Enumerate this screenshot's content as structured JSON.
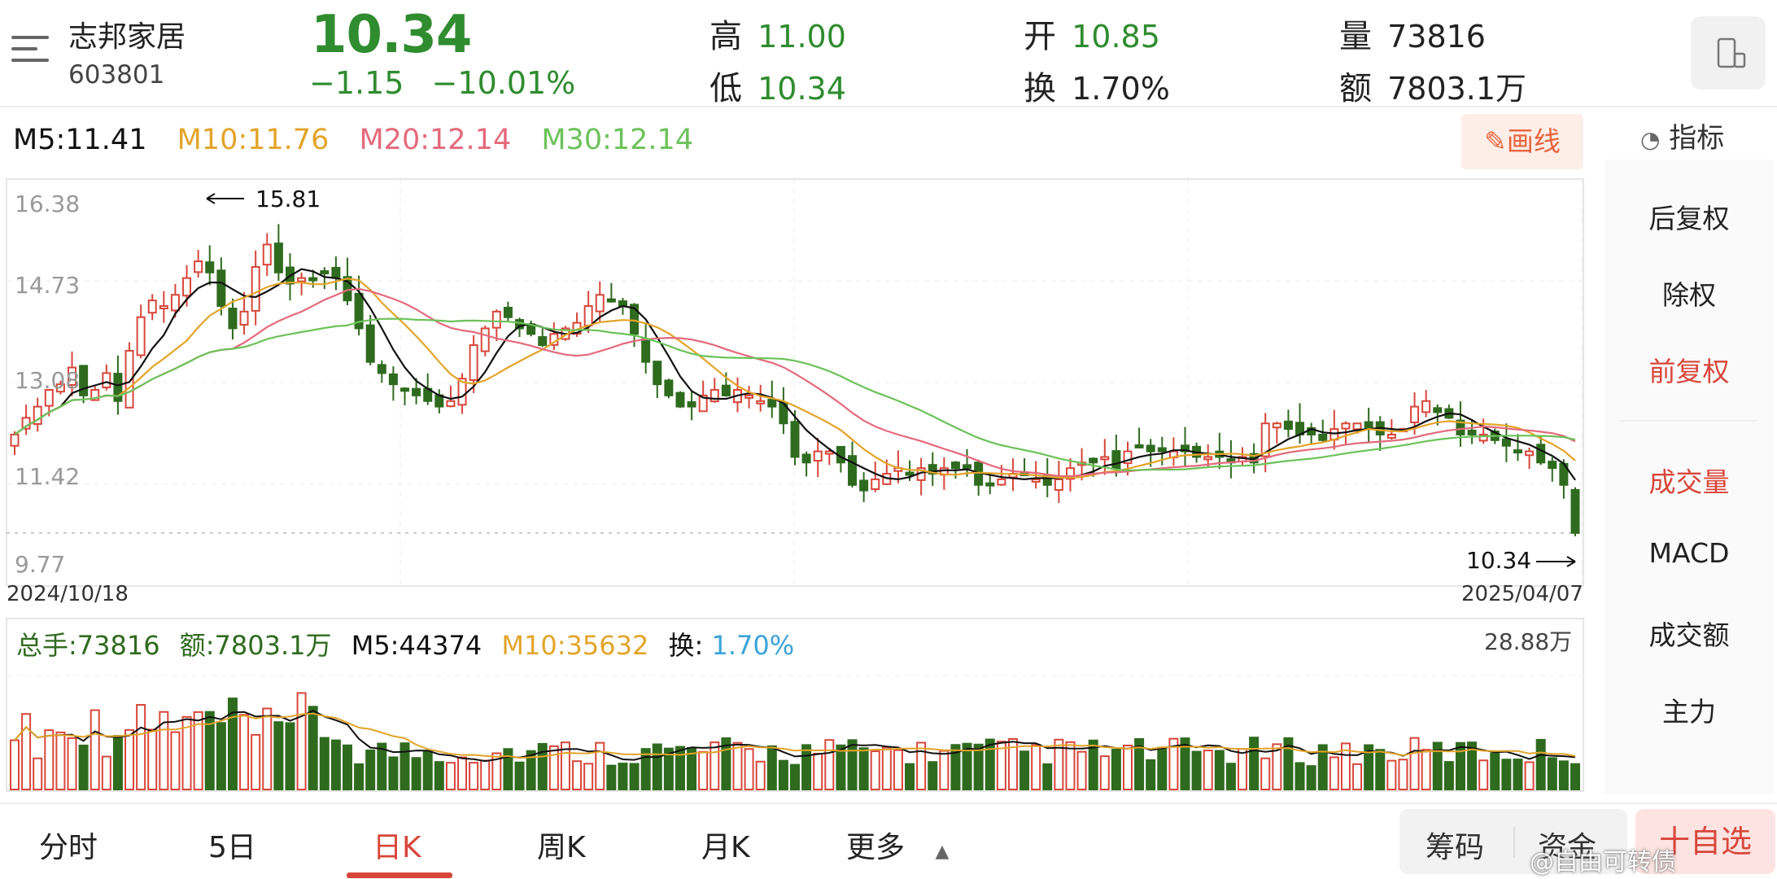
{
  "stock": {
    "name": "志邦家居",
    "code": "603801",
    "price": "10.34",
    "change": "−1.15",
    "change_pct": "−10.01%"
  },
  "stats": {
    "high_label": "高",
    "high": "11.00",
    "low_label": "低",
    "low": "10.34",
    "open_label": "开",
    "open": "10.85",
    "turnover_label": "换",
    "turnover": "1.70%",
    "volume_label": "量",
    "volume": "73816",
    "amount_label": "额",
    "amount": "7803.1万"
  },
  "ma": {
    "m5": "M5:11.41",
    "m10": "M10:11.76",
    "m20": "M20:12.14",
    "m30": "M30:12.14"
  },
  "draw_button": "画线",
  "indicator_label": "指标",
  "side_items": [
    "后复权",
    "除权",
    "前复权",
    "成交量",
    "MACD",
    "成交额",
    "主力"
  ],
  "price_axis": [
    "16.38",
    "14.73",
    "13.08",
    "11.42",
    "9.77"
  ],
  "date_start": "2024/10/18",
  "date_end": "2025/04/07",
  "high_marker": "15.81",
  "low_marker": "10.34",
  "volume_header": {
    "total": "总手:73816",
    "amount": "额:7803.1万",
    "m5": "M5:44374",
    "m10": "M10:35632",
    "turnover_label": "换:",
    "turnover": "1.70%",
    "max": "28.88万"
  },
  "tabs": [
    "分时",
    "5日",
    "日K",
    "周K",
    "月K",
    "更多"
  ],
  "buttons": {
    "chips": "筹码",
    "funds": "资金",
    "add": "十自选"
  },
  "watermark": "@自由可转债",
  "colors": {
    "up": "#d8463a",
    "down": "#2f6b1f",
    "ma5": "#111111",
    "ma10": "#e3a42a",
    "ma20": "#e46a7c",
    "ma30": "#6cc25a"
  },
  "chart_data": {
    "type": "candlestick",
    "y_range": [
      9.77,
      16.38
    ],
    "closes": [
      12.1,
      12.4,
      12.6,
      12.9,
      13.0,
      13.3,
      12.8,
      12.9,
      13.2,
      12.7,
      13.6,
      14.2,
      14.5,
      14.4,
      14.6,
      14.9,
      15.2,
      15.0,
      14.4,
      14.0,
      14.3,
      15.1,
      15.5,
      15.0,
      14.8,
      14.9,
      14.9,
      15.0,
      14.9,
      14.5,
      14.0,
      13.4,
      13.2,
      13.0,
      12.9,
      12.8,
      12.7,
      12.6,
      12.7,
      13.1,
      13.7,
      14.0,
      14.3,
      14.2,
      14.0,
      13.9,
      13.7,
      13.9,
      14.0,
      14.1,
      14.4,
      14.6,
      14.5,
      14.4,
      13.9,
      13.4,
      13.0,
      12.8,
      12.6,
      12.6,
      12.8,
      12.9,
      12.8,
      12.9,
      12.8,
      12.7,
      12.6,
      12.3,
      11.7,
      11.6,
      11.8,
      11.8,
      11.6,
      11.2,
      11.1,
      11.3,
      11.4,
      11.5,
      11.4,
      11.5,
      11.4,
      11.5,
      11.5,
      11.5,
      11.2,
      11.2,
      11.3,
      11.4,
      11.4,
      11.3,
      11.2,
      11.3,
      11.5,
      11.6,
      11.6,
      11.7,
      11.5,
      11.8,
      11.9,
      11.8,
      11.8,
      11.8,
      11.8,
      11.7,
      11.7,
      11.7,
      11.6,
      11.7,
      11.6,
      12.3,
      12.3,
      12.2,
      12.1,
      12.1,
      12.0,
      12.2,
      12.3,
      12.3,
      12.2,
      12.1,
      12.1,
      12.2,
      12.6,
      12.7,
      12.5,
      12.4,
      12.1,
      12.1,
      12.1,
      12.0,
      11.9,
      11.8,
      11.8,
      11.6,
      11.5,
      11.2,
      10.34
    ],
    "volume_max_label": "28.88万"
  }
}
